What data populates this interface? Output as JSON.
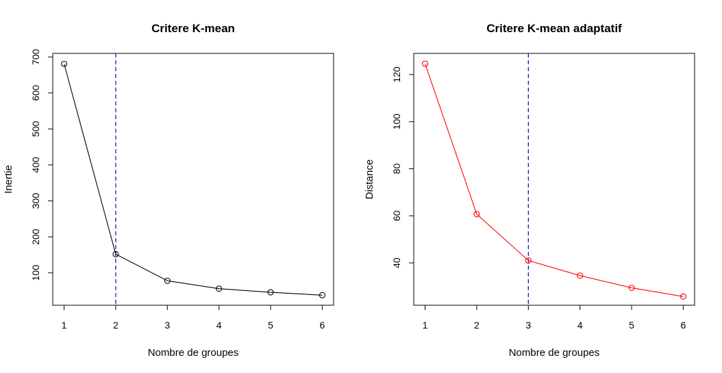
{
  "chart_data": [
    {
      "type": "line",
      "title": "Critere K-mean",
      "xlabel": "Nombre de groupes",
      "ylabel": "Inertie",
      "x": [
        1,
        2,
        3,
        4,
        5,
        6
      ],
      "xlim": [
        0.78,
        6.22
      ],
      "xticks": [
        "1",
        "2",
        "3",
        "4",
        "5",
        "6"
      ],
      "ylim": [
        10,
        710
      ],
      "yticks": [
        "100",
        "200",
        "300",
        "400",
        "500",
        "600",
        "700"
      ],
      "series": [
        {
          "values": [
            681,
            152,
            78,
            56,
            46,
            38
          ],
          "color": "#000000",
          "marker": "open-circle"
        }
      ],
      "vline": {
        "x": 2,
        "color": "#0000cd",
        "style": "dashed"
      },
      "grid": false,
      "legend": "none"
    },
    {
      "type": "line",
      "title": "Critere K-mean adaptatif",
      "xlabel": "Nombre de groupes",
      "ylabel": "Distance",
      "x": [
        1,
        2,
        3,
        4,
        5,
        6
      ],
      "xlim": [
        0.78,
        6.22
      ],
      "xticks": [
        "1",
        "2",
        "3",
        "4",
        "5",
        "6"
      ],
      "ylim": [
        22,
        129
      ],
      "yticks": [
        "40",
        "60",
        "80",
        "100",
        "120"
      ],
      "series": [
        {
          "values": [
            124.6,
            60.7,
            41.0,
            34.6,
            29.4,
            25.7
          ],
          "color": "#ff0000",
          "marker": "open-circle"
        }
      ],
      "vline": {
        "x": 3,
        "color": "#0000cd",
        "style": "dashed"
      },
      "grid": false,
      "legend": "none"
    }
  ]
}
